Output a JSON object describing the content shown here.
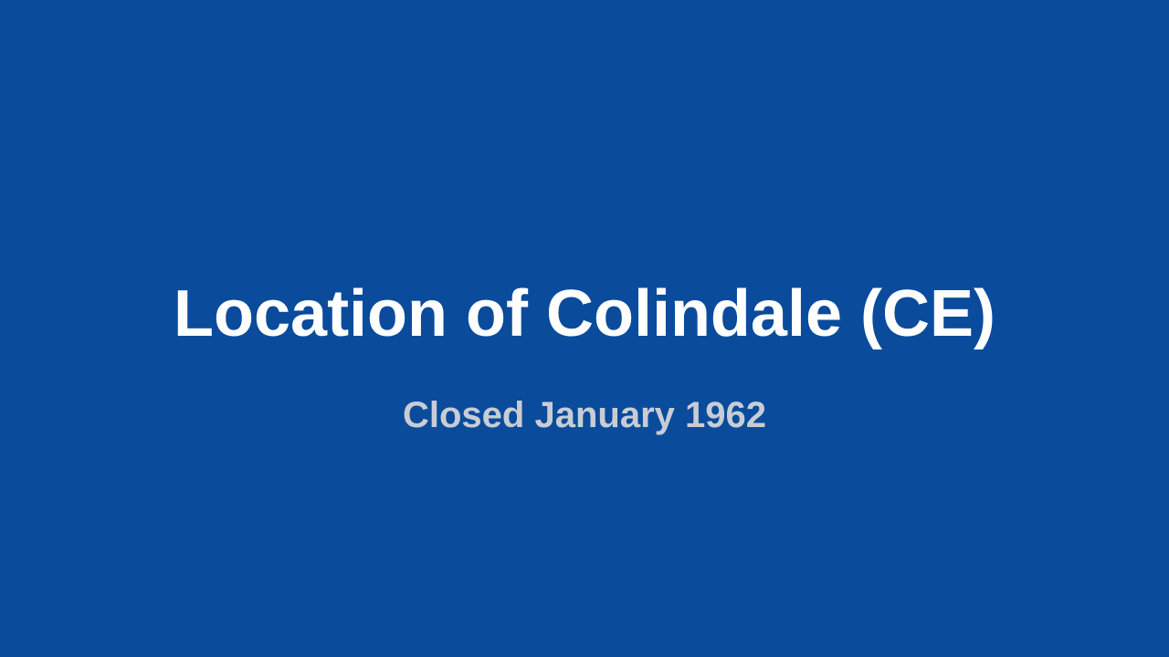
{
  "background_color": "#0a4b9c",
  "title": {
    "text": "Location of Colindale (CE)",
    "color": "#ffffff",
    "font_size": 72
  },
  "subtitle": {
    "text": "Closed January 1962",
    "color": "#c8cdd4",
    "font_size": 40
  }
}
